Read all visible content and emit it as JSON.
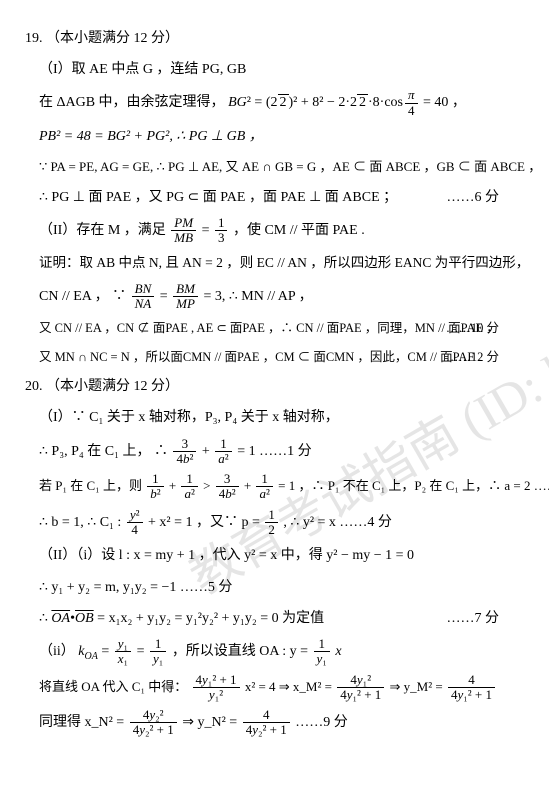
{
  "watermark": "教育考试指南\n(ID: longkao177)",
  "q19": {
    "header": "19.  （本小题满分 12 分）",
    "p1_1": "（I）取 AE 中点 G ，连结 PG, GB",
    "p1_2a": "在 ΔAGB 中，由余弦定理得，",
    "p1_2b": "= 40 ，",
    "p1_3": "PB² = 48 = BG² + PG², ∴ PG ⊥ GB ，",
    "p1_4": "∵ PA = PE, AG = GE, ∴ PG ⊥ AE, 又 AE ∩ GB = G ，AE ⊂ 面 ABCE ，GB ⊂ 面 ABCE ，",
    "p1_5": "∴ PG ⊥ 面 PAE ，又 PG ⊂ 面 PAE ，面 PAE ⊥ 面 ABCE ；",
    "p1_score": "……6 分",
    "p2_1a": "（II）存在 M ，满足 ",
    "p2_1b": "，使 CM // 平面 PAE .",
    "p2_2": "证明：取 AB 中点 N, 且 AN = 2 ，则 EC // AN ，所以四边形 EANC 为平行四边形，",
    "p2_3a": "CN // EA ，",
    "p2_3b": "= 3, ∴ MN // AP ，",
    "p2_4": "又 CN // EA ，CN ⊄ 面PAE , AE ⊂ 面PAE ，∴ CN // 面PAE ，同理，MN // 面PAE ，",
    "p2_4score": "……10 分",
    "p2_5": "又 MN ∩ NC = N ，所以面CMN // 面PAE ，CM ⊂ 面CMN ，因此，CM // 面PAE .",
    "p2_5score": "……12 分"
  },
  "q20": {
    "header": "20.  （本小题满分 12 分）",
    "p1_1": "（I）∵ C₁ 关于 x 轴对称，P₃, P₄ 关于 x 轴对称，",
    "p1_2a": "∴ P₃, P₄ 在 C₁ 上，",
    "p1_2b": "= 1 ……1 分",
    "p1_3a": "若 P₁ 在 C₁ 上，则 ",
    "p1_3b": "= 1 ，∴ P₁ 不在 C₁ 上，P₂ 在 C₁ 上，∴ a = 2 ……3 分",
    "p1_4a": "∴ b = 1, ∴ C₁ : ",
    "p1_4b": " + x² = 1 ，又∵ p = ",
    "p1_4c": ", ∴ y² = x ……4 分",
    "p2_1": "（II）（i）设 l : x = my + 1 ，代入 y² = x 中，得 y² − my − 1 = 0",
    "p2_2": "∴ y₁ + y₂ = m, y₁y₂ = −1 ……5 分",
    "p2_3a": "= x₁x₂ + y₁y₂ = y₁²y₂² + y₁y₂ = 0  为定值",
    "p2_3score": "……7 分",
    "p2_4a": "（ii）",
    "p2_4b": "，所以设直线 OA : y = ",
    "p2_5a": "将直线 OA 代入 C₁ 中得：",
    "p2_5b": " x² = 4 ⇒ x_M² = ",
    "p2_5c": " ⇒ y_M² = ",
    "p2_6a": "同理得 x_N² = ",
    "p2_6b": " ⇒ y_N² = ",
    "p2_6c": " ……9 分"
  }
}
